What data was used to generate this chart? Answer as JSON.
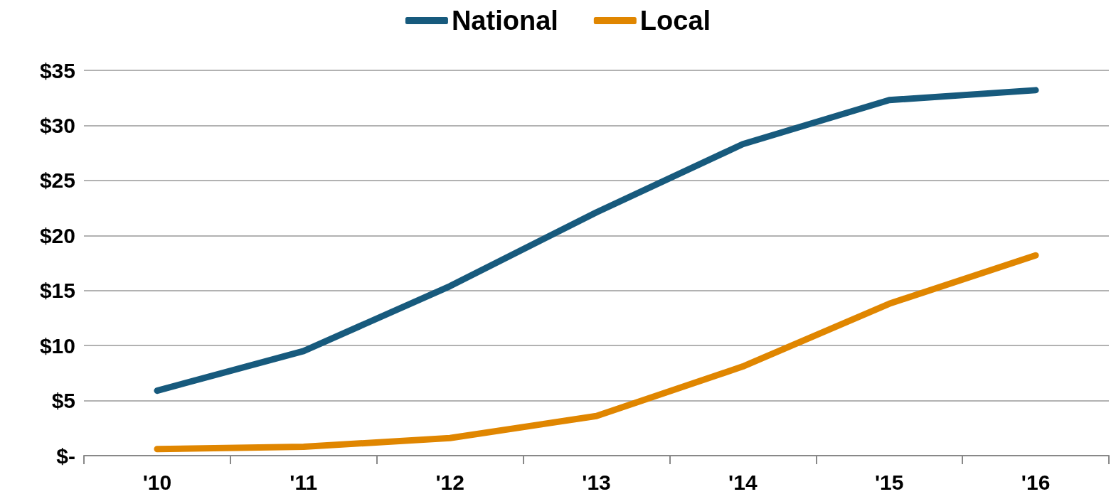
{
  "chart_data": {
    "type": "line",
    "categories": [
      "'10",
      "'11",
      "'12",
      "'13",
      "'14",
      "'15",
      "'16"
    ],
    "series": [
      {
        "name": "National",
        "color": "#175a7d",
        "values": [
          5.9,
          9.5,
          15.4,
          22.1,
          28.3,
          32.3,
          33.2
        ]
      },
      {
        "name": "Local",
        "color": "#e08600",
        "values": [
          0.6,
          0.8,
          1.6,
          3.6,
          8.1,
          13.8,
          18.2
        ]
      }
    ],
    "ylim": [
      0,
      35
    ],
    "yticks": [
      {
        "value": 0,
        "label": "$-"
      },
      {
        "value": 5,
        "label": "$5"
      },
      {
        "value": 10,
        "label": "$10"
      },
      {
        "value": 15,
        "label": "$15"
      },
      {
        "value": 20,
        "label": "$20"
      },
      {
        "value": 25,
        "label": "$25"
      },
      {
        "value": 30,
        "label": "$30"
      },
      {
        "value": 35,
        "label": "$35"
      }
    ],
    "grid": "y",
    "legend": "top"
  }
}
